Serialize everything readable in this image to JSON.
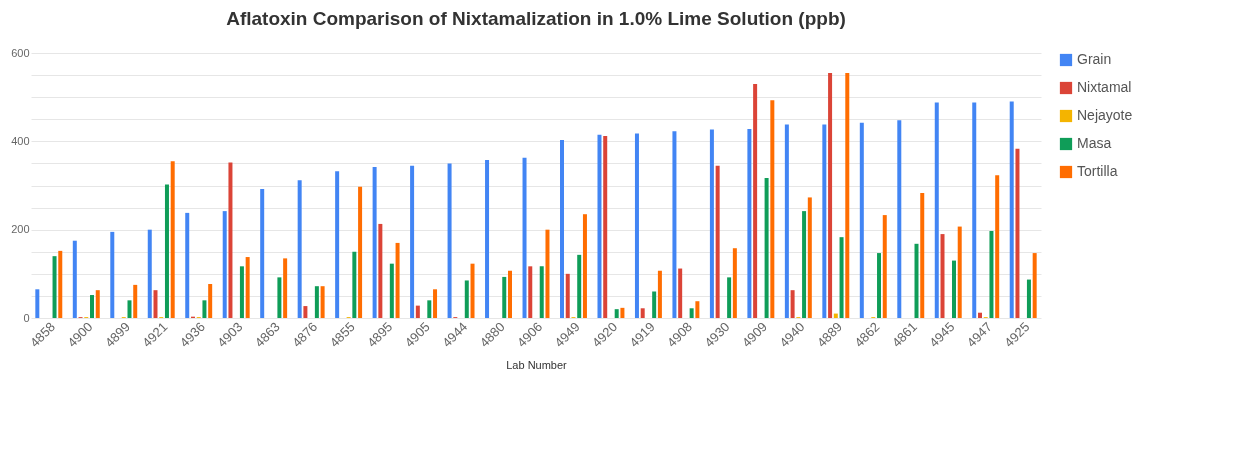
{
  "chart_data": {
    "type": "bar",
    "title": "Aflatoxin Comparison of Nixtamalization in 1.0% Lime Solution (ppb)",
    "xlabel": "Lab Number",
    "categories": [
      "4858",
      "4900",
      "4899",
      "4921",
      "4936",
      "4903",
      "4863",
      "4876",
      "4855",
      "4895",
      "4905",
      "4944",
      "4880",
      "4906",
      "4949",
      "4920",
      "4919",
      "4908",
      "4930",
      "4909",
      "4940",
      "4889",
      "4862",
      "4861",
      "4945",
      "4947",
      "4925"
    ],
    "series": [
      {
        "name": "Grain",
        "color": "#4285f4",
        "values": [
          65,
          175,
          195,
          200,
          238,
          242,
          292,
          312,
          332,
          342,
          345,
          350,
          358,
          363,
          403,
          415,
          418,
          423,
          427,
          428,
          438,
          438,
          442,
          448,
          488,
          488,
          490
        ]
      },
      {
        "name": "Nixtamal",
        "color": "#db4437",
        "values": [
          0,
          2,
          0,
          63,
          3,
          352,
          0,
          27,
          0,
          213,
          28,
          2,
          0,
          117,
          100,
          412,
          22,
          112,
          345,
          530,
          63,
          555,
          0,
          0,
          190,
          12,
          383
        ]
      },
      {
        "name": "Nejayote",
        "color": "#f4b400",
        "values": [
          0,
          2,
          2,
          2,
          2,
          0,
          0,
          0,
          2,
          0,
          0,
          0,
          0,
          0,
          2,
          0,
          0,
          0,
          0,
          0,
          2,
          10,
          2,
          0,
          0,
          2,
          0
        ]
      },
      {
        "name": "Masa",
        "color": "#0f9d58",
        "values": [
          140,
          52,
          40,
          302,
          40,
          117,
          92,
          72,
          150,
          123,
          40,
          85,
          93,
          117,
          143,
          20,
          60,
          22,
          92,
          317,
          242,
          183,
          147,
          168,
          130,
          197,
          87
        ]
      },
      {
        "name": "Tortilla",
        "color": "#ff6d01",
        "values": [
          152,
          63,
          75,
          355,
          77,
          138,
          135,
          72,
          297,
          170,
          65,
          123,
          107,
          200,
          235,
          23,
          107,
          38,
          158,
          493,
          273,
          555,
          233,
          283,
          207,
          323,
          147
        ]
      }
    ],
    "ylim": [
      0,
      600
    ],
    "yticks": [
      0,
      {
        "value": 50,
        "label": null
      },
      {
        "value": 100,
        "label": null
      },
      {
        "value": 150,
        "label": null
      },
      200,
      {
        "value": 250,
        "label": null
      },
      {
        "value": 300,
        "label": null
      },
      {
        "value": 350,
        "label": null
      },
      400,
      {
        "value": 450,
        "label": null
      },
      {
        "value": 500,
        "label": null
      },
      {
        "value": 550,
        "label": null
      },
      600
    ],
    "grid": true,
    "legend": "right"
  }
}
